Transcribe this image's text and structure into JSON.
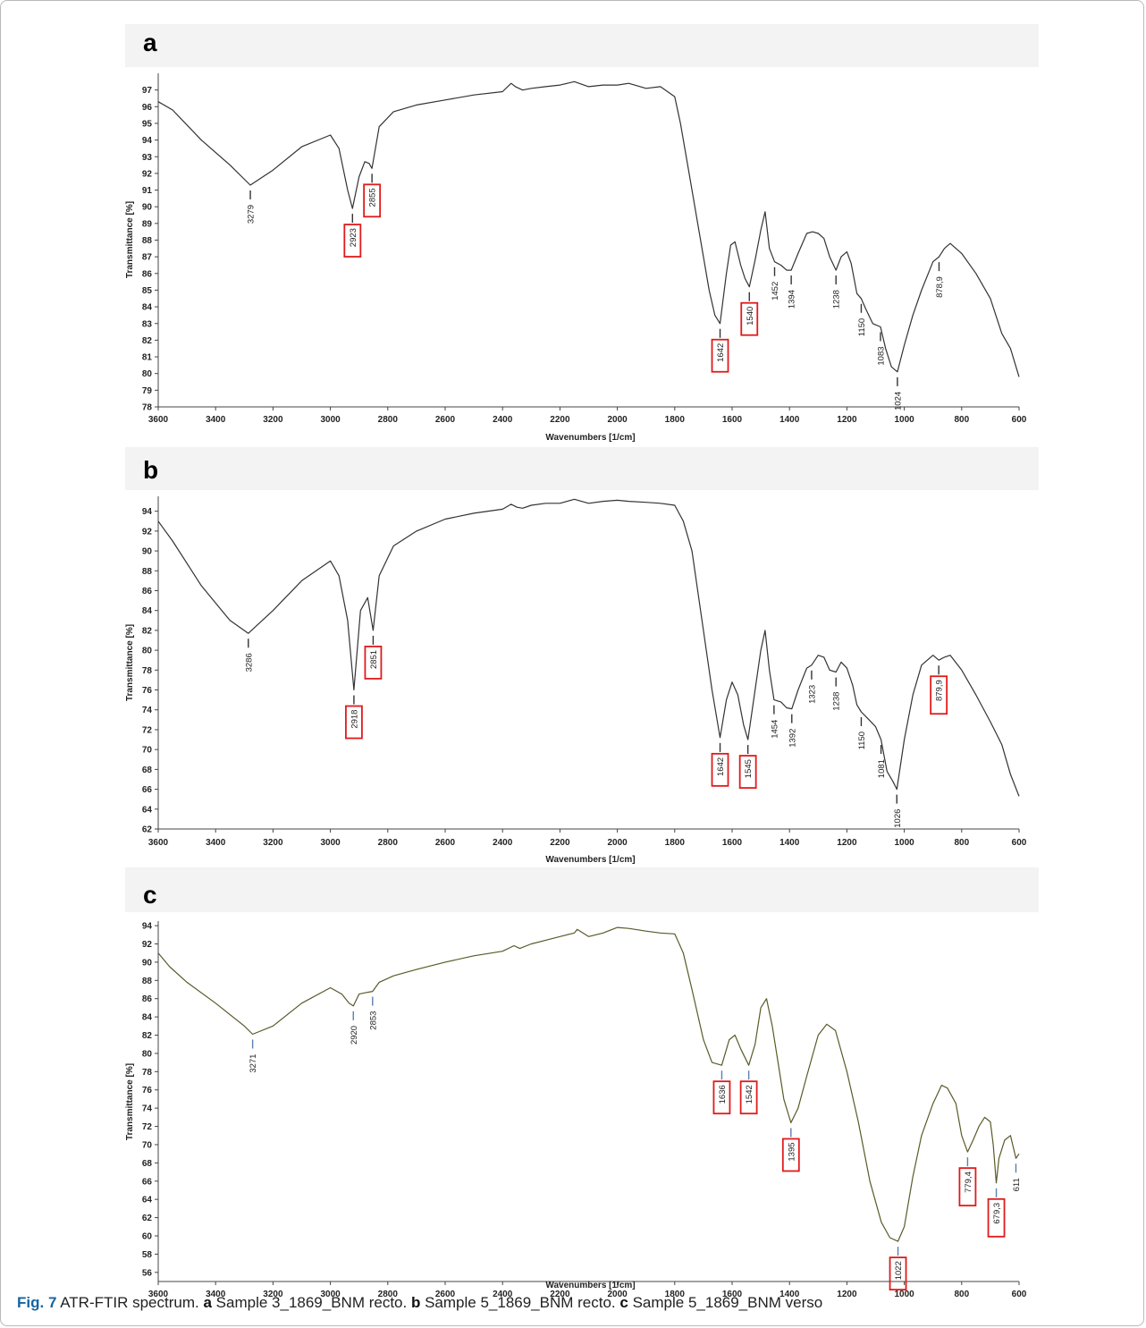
{
  "caption": {
    "fig_label": "Fig. 7",
    "lead": "ATR-FTIR spectrum.",
    "parts": [
      {
        "letter": "a",
        "text": "Sample 3_1869_BNM recto."
      },
      {
        "letter": "b",
        "text": "Sample 5_1869_BNM recto."
      },
      {
        "letter": "c",
        "text": "Sample 5_1869_BNM verso"
      }
    ]
  },
  "chart_data": [
    {
      "type": "line",
      "panel_label": "a",
      "xlabel": "Wavenumbers [1/cm]",
      "ylabel": "Transmittance [%]",
      "xlim": [
        3600,
        600
      ],
      "ylim": [
        78,
        98
      ],
      "x_ticks": [
        3600,
        3400,
        3200,
        3000,
        2800,
        2600,
        2400,
        2200,
        2000,
        1800,
        1600,
        1400,
        1200,
        1000,
        800,
        600
      ],
      "y_ticks": [
        78,
        79,
        80,
        81,
        82,
        83,
        84,
        85,
        86,
        87,
        88,
        89,
        90,
        91,
        92,
        93,
        94,
        95,
        96,
        97
      ],
      "line_color": "#333333",
      "series": [
        {
          "x": [
            3600,
            3550,
            3450,
            3350,
            3279,
            3200,
            3100,
            3000,
            2970,
            2940,
            2923,
            2900,
            2880,
            2865,
            2855,
            2830,
            2780,
            2700,
            2600,
            2500,
            2400,
            2370,
            2355,
            2330,
            2300,
            2250,
            2200,
            2150,
            2100,
            2050,
            2000,
            1960,
            1900,
            1850,
            1800,
            1780,
            1750,
            1700,
            1680,
            1660,
            1642,
            1620,
            1605,
            1590,
            1570,
            1555,
            1540,
            1520,
            1500,
            1485,
            1470,
            1452,
            1430,
            1410,
            1394,
            1370,
            1340,
            1320,
            1300,
            1280,
            1260,
            1238,
            1220,
            1200,
            1185,
            1165,
            1150,
            1135,
            1110,
            1083,
            1065,
            1045,
            1024,
            1000,
            970,
            940,
            900,
            878.9,
            860,
            840,
            800,
            750,
            700,
            660,
            630,
            600
          ],
          "y": [
            96.3,
            95.8,
            94.0,
            92.5,
            91.3,
            92.2,
            93.6,
            94.3,
            93.5,
            91.0,
            89.9,
            91.8,
            92.7,
            92.6,
            92.3,
            94.8,
            95.7,
            96.1,
            96.4,
            96.7,
            96.9,
            97.4,
            97.2,
            97.0,
            97.1,
            97.2,
            97.3,
            97.5,
            97.2,
            97.3,
            97.3,
            97.4,
            97.1,
            97.2,
            96.6,
            95.0,
            92.0,
            87.0,
            85.0,
            83.5,
            83.0,
            86.0,
            87.7,
            87.9,
            86.5,
            85.7,
            85.2,
            86.8,
            88.6,
            89.7,
            87.5,
            86.7,
            86.5,
            86.2,
            86.2,
            87.2,
            88.4,
            88.5,
            88.4,
            88.1,
            87.0,
            86.2,
            87.0,
            87.3,
            86.6,
            84.8,
            84.5,
            83.9,
            83.0,
            82.8,
            81.5,
            80.4,
            80.1,
            81.7,
            83.5,
            85.0,
            86.7,
            87.0,
            87.5,
            87.8,
            87.2,
            86.0,
            84.5,
            82.4,
            81.5,
            79.8
          ]
        }
      ],
      "annotations": [
        {
          "label": "3279",
          "x": 3279,
          "boxed": false
        },
        {
          "label": "2923",
          "x": 2923,
          "boxed": true
        },
        {
          "label": "2855",
          "x": 2855,
          "boxed": true
        },
        {
          "label": "1642",
          "x": 1642,
          "boxed": true
        },
        {
          "label": "1540",
          "x": 1540,
          "boxed": true
        },
        {
          "label": "1452",
          "x": 1452,
          "boxed": false
        },
        {
          "label": "1394",
          "x": 1394,
          "boxed": false
        },
        {
          "label": "1238",
          "x": 1238,
          "boxed": false
        },
        {
          "label": "1150",
          "x": 1150,
          "boxed": false
        },
        {
          "label": "1083",
          "x": 1083,
          "boxed": false
        },
        {
          "label": "1024",
          "x": 1024,
          "boxed": false
        },
        {
          "label": "878,9",
          "x": 878.9,
          "boxed": false
        }
      ]
    },
    {
      "type": "line",
      "panel_label": "b",
      "xlabel": "Wavenumbers [1/cm]",
      "ylabel": "Transmittance [%]",
      "xlim": [
        3600,
        600
      ],
      "ylim": [
        62,
        95.5
      ],
      "x_ticks": [
        3600,
        3400,
        3200,
        3000,
        2800,
        2600,
        2400,
        2200,
        2000,
        1800,
        1600,
        1400,
        1200,
        1000,
        800,
        600
      ],
      "y_ticks": [
        62,
        64,
        66,
        68,
        70,
        72,
        74,
        76,
        78,
        80,
        82,
        84,
        86,
        88,
        90,
        92,
        94
      ],
      "line_color": "#333333",
      "series": [
        {
          "x": [
            3600,
            3550,
            3450,
            3350,
            3286,
            3200,
            3100,
            3000,
            2970,
            2940,
            2918,
            2895,
            2870,
            2851,
            2830,
            2780,
            2700,
            2600,
            2500,
            2400,
            2370,
            2350,
            2330,
            2300,
            2250,
            2200,
            2150,
            2100,
            2050,
            2000,
            1960,
            1900,
            1850,
            1800,
            1770,
            1740,
            1700,
            1670,
            1642,
            1620,
            1600,
            1580,
            1560,
            1545,
            1520,
            1500,
            1485,
            1470,
            1454,
            1430,
            1410,
            1392,
            1370,
            1340,
            1323,
            1300,
            1280,
            1260,
            1238,
            1220,
            1200,
            1180,
            1165,
            1150,
            1130,
            1100,
            1081,
            1060,
            1040,
            1026,
            1000,
            970,
            940,
            900,
            879.9,
            860,
            840,
            800,
            750,
            700,
            660,
            630,
            600
          ],
          "y": [
            93.0,
            91.0,
            86.5,
            83.0,
            81.7,
            84.0,
            87.0,
            89.0,
            87.5,
            83.0,
            76.0,
            84.0,
            85.3,
            82.0,
            87.5,
            90.5,
            92.0,
            93.2,
            93.8,
            94.2,
            94.7,
            94.4,
            94.3,
            94.6,
            94.8,
            94.8,
            95.2,
            94.8,
            95.0,
            95.1,
            95.0,
            94.9,
            94.8,
            94.6,
            93.0,
            90.0,
            82.0,
            76.0,
            71.2,
            75.0,
            76.8,
            75.5,
            72.5,
            71.0,
            76.0,
            80.0,
            82.0,
            78.0,
            75.0,
            74.8,
            74.2,
            74.1,
            76.0,
            78.2,
            78.5,
            79.5,
            79.3,
            78.0,
            77.8,
            78.8,
            78.2,
            76.5,
            74.5,
            73.8,
            73.2,
            72.3,
            71.0,
            67.8,
            66.8,
            66.0,
            71.0,
            75.5,
            78.5,
            79.5,
            79.0,
            79.3,
            79.5,
            78.0,
            75.5,
            72.8,
            70.5,
            67.5,
            65.3
          ]
        }
      ],
      "annotations": [
        {
          "label": "3286",
          "x": 3286,
          "boxed": false
        },
        {
          "label": "2918",
          "x": 2918,
          "boxed": true
        },
        {
          "label": "2851",
          "x": 2851,
          "boxed": true
        },
        {
          "label": "1642",
          "x": 1642,
          "boxed": true
        },
        {
          "label": "1545",
          "x": 1545,
          "boxed": true
        },
        {
          "label": "1454",
          "x": 1454,
          "boxed": false
        },
        {
          "label": "1392",
          "x": 1392,
          "boxed": false
        },
        {
          "label": "1323",
          "x": 1323,
          "boxed": false
        },
        {
          "label": "1238",
          "x": 1238,
          "boxed": false
        },
        {
          "label": "1150",
          "x": 1150,
          "boxed": false
        },
        {
          "label": "1081",
          "x": 1081,
          "boxed": false
        },
        {
          "label": "1026",
          "x": 1026,
          "boxed": false
        },
        {
          "label": "879,9",
          "x": 879.9,
          "boxed": true
        }
      ]
    },
    {
      "type": "line",
      "panel_label": "c",
      "xlabel": "Wavenumbers [1/cm]",
      "ylabel": "Transmittance [%]",
      "xlim": [
        3600,
        600
      ],
      "ylim": [
        55,
        94.5
      ],
      "x_ticks": [
        3600,
        3400,
        3200,
        3000,
        2800,
        2600,
        2400,
        2200,
        2000,
        1800,
        1600,
        1400,
        1200,
        1000,
        800,
        600
      ],
      "y_ticks": [
        56,
        58,
        60,
        62,
        64,
        66,
        68,
        70,
        72,
        74,
        76,
        78,
        80,
        82,
        84,
        86,
        88,
        90,
        92,
        94
      ],
      "line_color": "#5a5a2a",
      "series": [
        {
          "x": [
            3600,
            3560,
            3500,
            3400,
            3300,
            3271,
            3200,
            3100,
            3000,
            2960,
            2935,
            2920,
            2900,
            2870,
            2853,
            2830,
            2780,
            2700,
            2600,
            2500,
            2400,
            2360,
            2340,
            2300,
            2250,
            2200,
            2150,
            2140,
            2100,
            2050,
            2000,
            1960,
            1900,
            1850,
            1800,
            1770,
            1740,
            1700,
            1670,
            1636,
            1610,
            1590,
            1570,
            1542,
            1520,
            1500,
            1480,
            1460,
            1440,
            1420,
            1395,
            1370,
            1340,
            1300,
            1270,
            1240,
            1200,
            1160,
            1120,
            1080,
            1050,
            1022,
            1000,
            970,
            940,
            900,
            870,
            850,
            820,
            800,
            779.4,
            760,
            740,
            720,
            700,
            690,
            679.3,
            670,
            650,
            630,
            611,
            600
          ],
          "y": [
            91.0,
            89.5,
            87.8,
            85.5,
            83.0,
            82.1,
            83.0,
            85.5,
            87.2,
            86.5,
            85.5,
            85.2,
            86.5,
            86.7,
            86.8,
            87.8,
            88.5,
            89.2,
            90.0,
            90.7,
            91.2,
            91.8,
            91.5,
            92.0,
            92.4,
            92.8,
            93.2,
            93.6,
            92.8,
            93.2,
            93.8,
            93.7,
            93.4,
            93.2,
            93.1,
            91.0,
            87.0,
            81.5,
            79.0,
            78.7,
            81.5,
            82.0,
            80.5,
            78.7,
            81.0,
            85.0,
            86.0,
            83.0,
            79.0,
            75.0,
            72.4,
            74.0,
            77.5,
            82.0,
            83.2,
            82.5,
            78.0,
            72.5,
            66.0,
            61.5,
            59.8,
            59.4,
            61.0,
            66.5,
            71.0,
            74.5,
            76.5,
            76.2,
            74.5,
            71.0,
            69.2,
            70.5,
            72.0,
            73.0,
            72.5,
            70.0,
            65.8,
            68.5,
            70.5,
            71.0,
            68.5,
            69.0
          ]
        }
      ],
      "annotations": [
        {
          "label": "3271",
          "x": 3271,
          "boxed": false
        },
        {
          "label": "2920",
          "x": 2920,
          "boxed": false
        },
        {
          "label": "2853",
          "x": 2853,
          "boxed": false
        },
        {
          "label": "1636",
          "x": 1636,
          "boxed": true
        },
        {
          "label": "1542",
          "x": 1542,
          "boxed": true
        },
        {
          "label": "1395",
          "x": 1395,
          "boxed": true
        },
        {
          "label": "1022",
          "x": 1022,
          "boxed": true
        },
        {
          "label": "779,4",
          "x": 779.4,
          "boxed": true
        },
        {
          "label": "679,3",
          "x": 679.3,
          "boxed": true
        },
        {
          "label": "611",
          "x": 611,
          "boxed": false
        }
      ]
    }
  ]
}
